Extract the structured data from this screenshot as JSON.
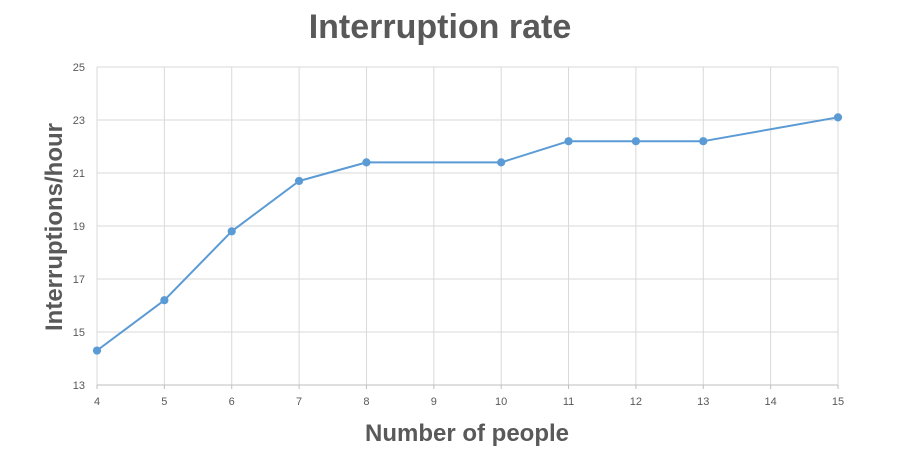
{
  "chart_data": {
    "type": "line",
    "title": "Interruption rate",
    "xlabel": "Number of people",
    "ylabel": "Interruptions/hour",
    "x": [
      4,
      5,
      6,
      7,
      8,
      10,
      11,
      12,
      13,
      15
    ],
    "series": [
      {
        "values": [
          14.3,
          16.2,
          18.8,
          20.7,
          21.4,
          21.4,
          22.2,
          22.2,
          22.2,
          23.1
        ],
        "color": "#5b9bd5"
      }
    ],
    "x_ticks": [
      "4",
      "5",
      "6",
      "7",
      "8",
      "9",
      "10",
      "11",
      "12",
      "13",
      "14",
      "15"
    ],
    "y_ticks": [
      "13",
      "15",
      "17",
      "19",
      "21",
      "23",
      "25"
    ],
    "xlim": [
      4,
      15
    ],
    "ylim": [
      13,
      25
    ],
    "grid": true,
    "legend": "none"
  }
}
